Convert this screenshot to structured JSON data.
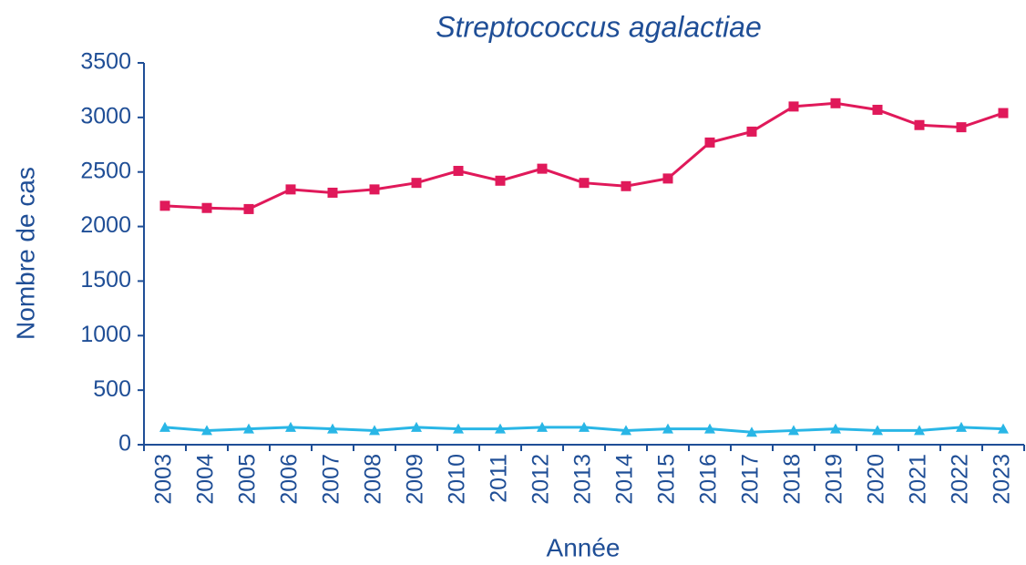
{
  "chart_data": {
    "type": "line",
    "title": "Streptococcus agalactiae",
    "x_label": "Année",
    "y_label": "Nombre de cas",
    "categories": [
      "2003",
      "2004",
      "2005",
      "2006",
      "2007",
      "2008",
      "2009",
      "2010",
      "2011",
      "2012",
      "2013",
      "2014",
      "2015",
      "2016",
      "2017",
      "2018",
      "2019",
      "2020",
      "2021",
      "2022",
      "2023"
    ],
    "series": [
      {
        "color": "#e0195a",
        "marker": "square",
        "values": [
          2190,
          2170,
          2160,
          2340,
          2310,
          2340,
          2400,
          2510,
          2420,
          2530,
          2400,
          2370,
          2440,
          2770,
          2870,
          3100,
          3130,
          3070,
          2930,
          2910,
          3040
        ]
      },
      {
        "color": "#29b6e6",
        "marker": "triangle",
        "values": [
          160,
          130,
          145,
          160,
          145,
          130,
          160,
          145,
          145,
          160,
          160,
          130,
          145,
          145,
          115,
          130,
          145,
          130,
          130,
          160,
          145
        ]
      }
    ],
    "ylim": [
      0,
      3500
    ],
    "yticks": [
      0,
      500,
      1000,
      1500,
      2000,
      2500,
      3000,
      3500
    ],
    "grid": false
  }
}
